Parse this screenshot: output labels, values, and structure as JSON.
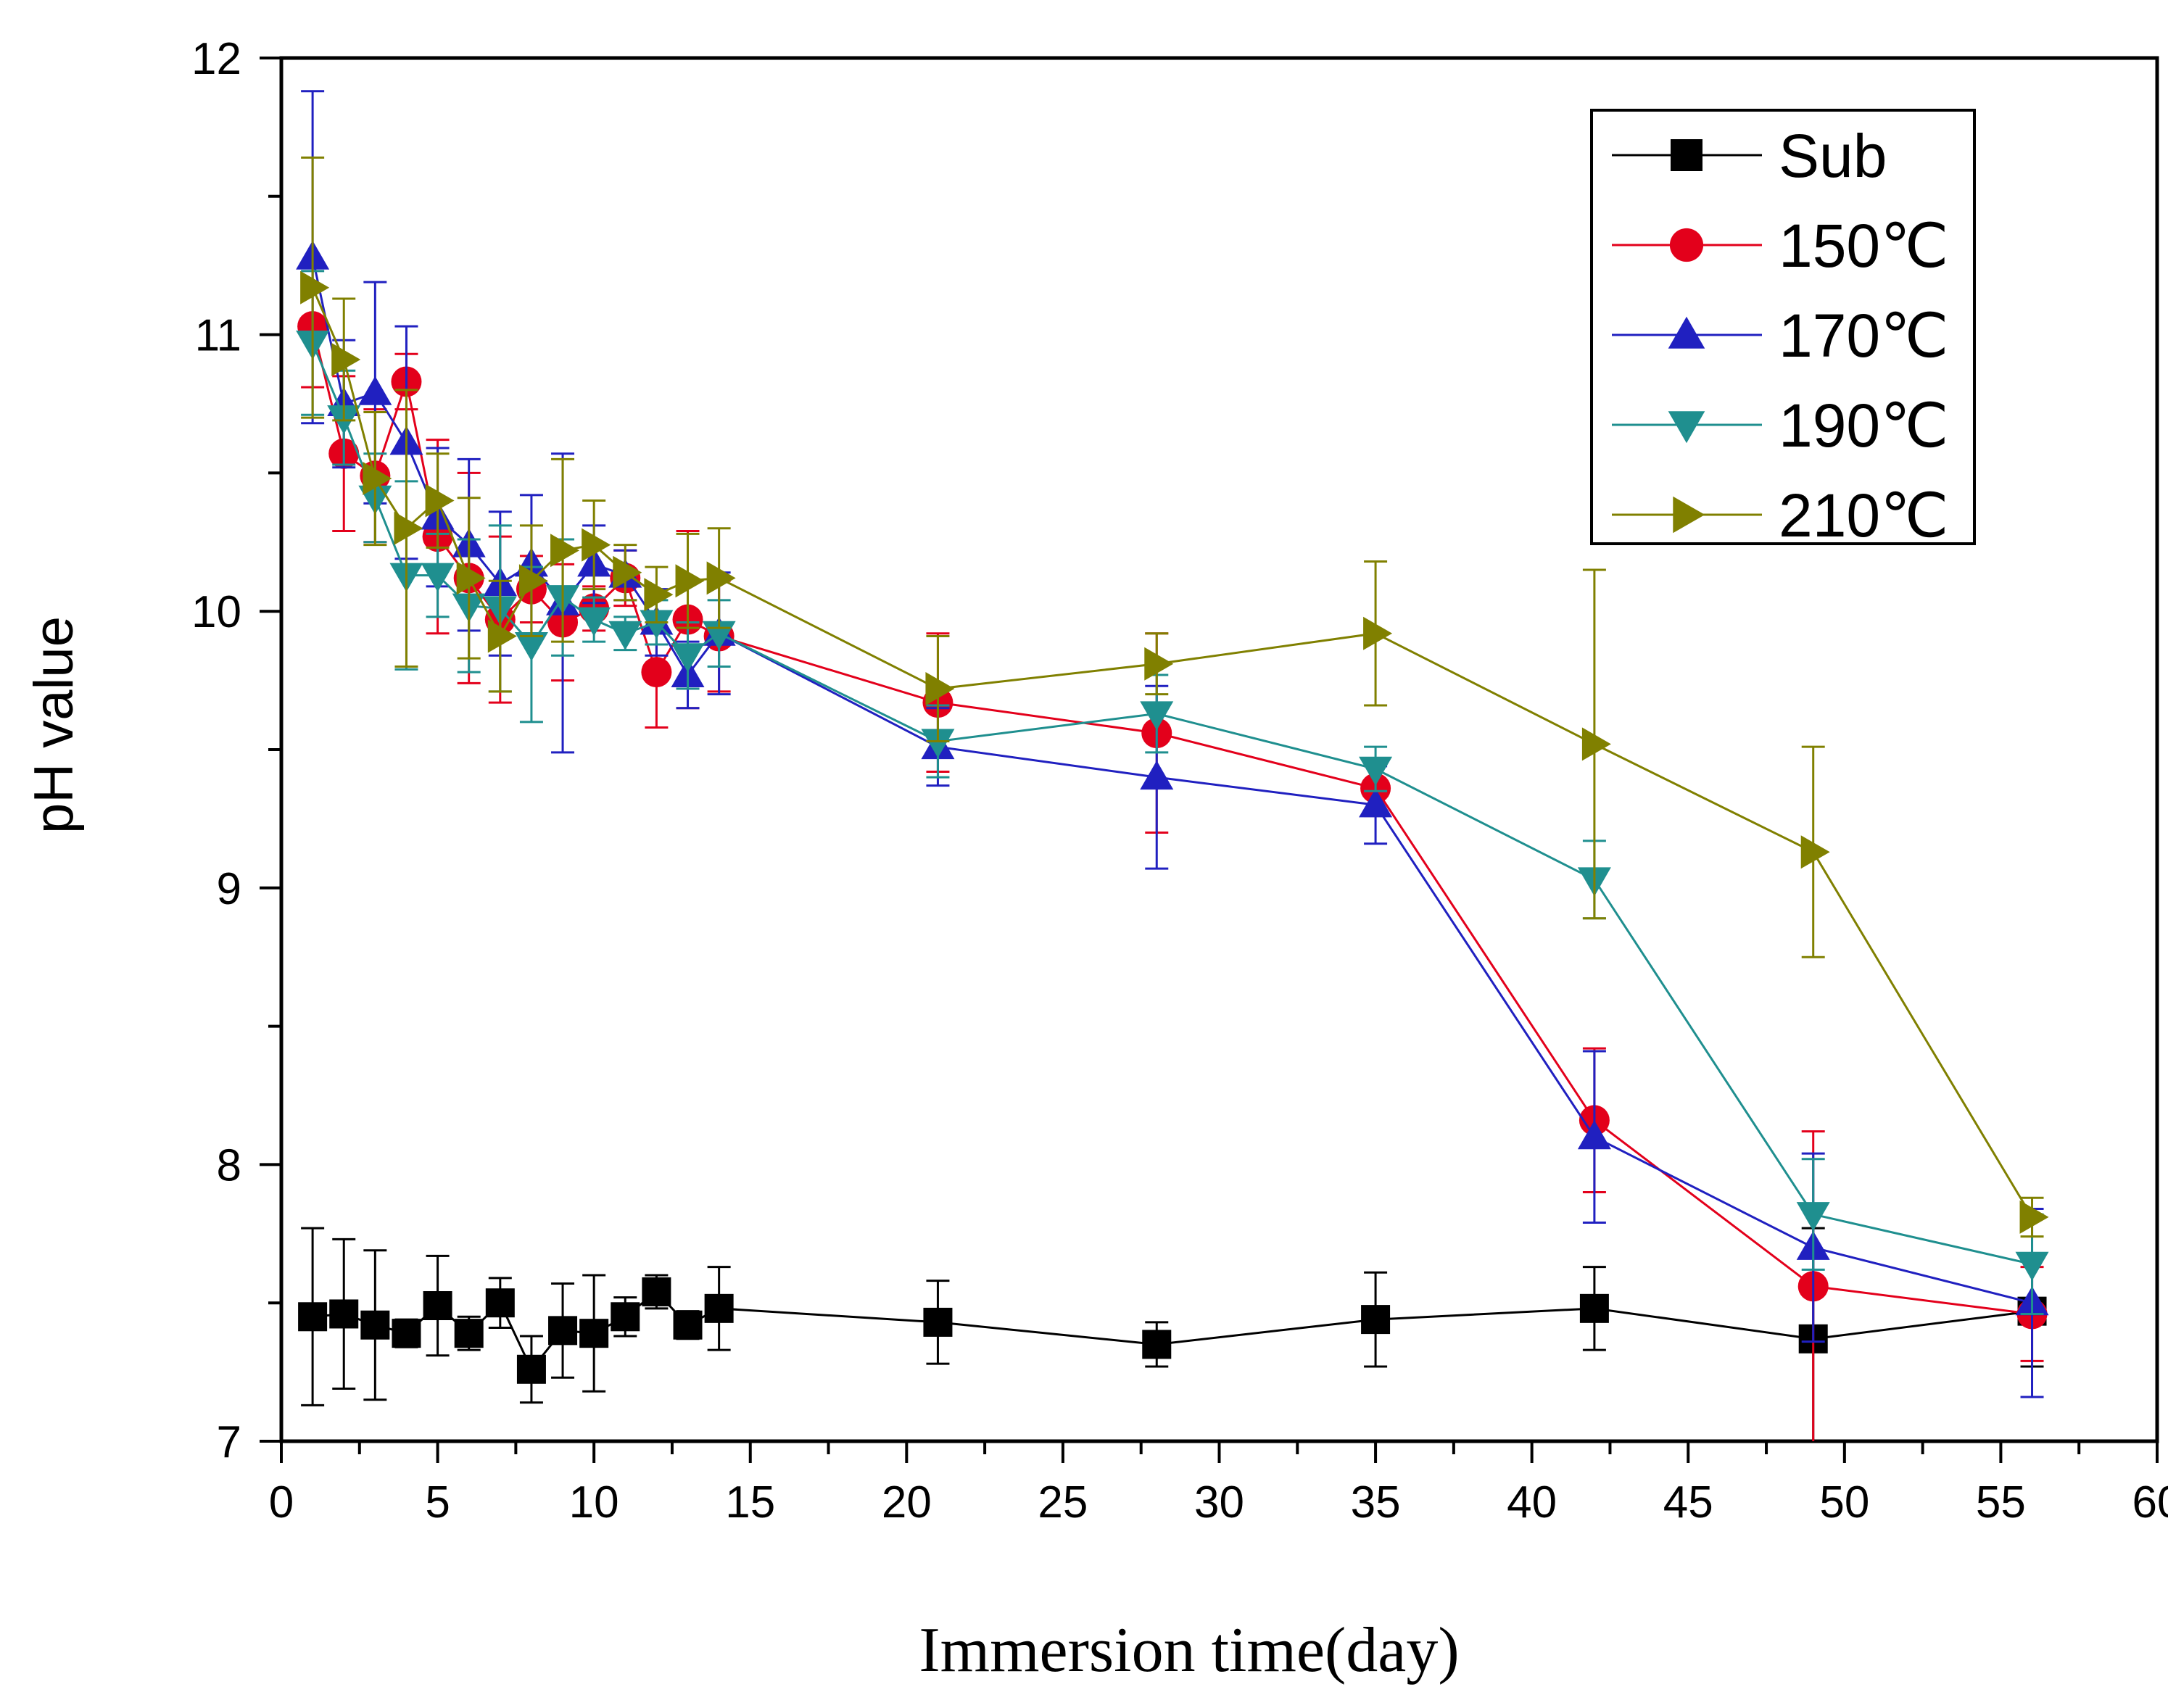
{
  "chart_data": {
    "type": "line",
    "title": "",
    "xlabel": "Immersion time(day)",
    "ylabel": "pH value",
    "xlim": [
      0,
      60
    ],
    "ylim": [
      7,
      12
    ],
    "x_ticks": [
      0,
      5,
      10,
      15,
      20,
      25,
      30,
      35,
      40,
      45,
      50,
      55,
      60
    ],
    "y_ticks": [
      7,
      8,
      9,
      10,
      11,
      12
    ],
    "x_tick_labels": [
      "0",
      "5",
      "10",
      "15",
      "20",
      "25",
      "30",
      "35",
      "40",
      "45",
      "50",
      "55",
      "60"
    ],
    "y_tick_labels": [
      "7",
      "8",
      "9",
      "10",
      "11",
      "12"
    ],
    "grid": false,
    "legend_position": "top-right",
    "x": [
      1,
      2,
      3,
      4,
      5,
      6,
      7,
      8,
      9,
      10,
      11,
      12,
      13,
      14,
      21,
      28,
      35,
      42,
      49,
      56
    ],
    "series": [
      {
        "name": "Sub",
        "color": "#000000",
        "marker": "square",
        "values": [
          7.45,
          7.46,
          7.42,
          7.39,
          7.49,
          7.39,
          7.5,
          7.26,
          7.4,
          7.39,
          7.45,
          7.54,
          7.42,
          7.48,
          7.43,
          7.35,
          7.44,
          7.48,
          7.37,
          7.47
        ],
        "errors": [
          0.32,
          0.27,
          0.27,
          0.05,
          0.18,
          0.06,
          0.09,
          0.12,
          0.17,
          0.21,
          0.07,
          0.06,
          0.05,
          0.15,
          0.15,
          0.08,
          0.17,
          0.15,
          0.4,
          0.2
        ]
      },
      {
        "name": "150℃",
        "color": "#e3001b",
        "marker": "circle",
        "values": [
          11.03,
          10.57,
          10.49,
          10.83,
          10.27,
          10.12,
          9.97,
          10.08,
          9.96,
          10.01,
          10.12,
          9.78,
          9.97,
          9.91,
          9.67,
          9.56,
          9.36,
          8.16,
          7.56,
          7.46
        ],
        "errors": [
          0.22,
          0.28,
          0.24,
          0.1,
          0.35,
          0.38,
          0.3,
          0.12,
          0.21,
          0.08,
          0.1,
          0.2,
          0.32,
          0.2,
          0.25,
          0.36,
          0.1,
          0.26,
          0.56,
          0.17
        ]
      },
      {
        "name": "170℃",
        "color": "#2020c0",
        "marker": "triangle-up",
        "values": [
          11.28,
          10.75,
          10.79,
          10.61,
          10.34,
          10.24,
          10.1,
          10.17,
          10.03,
          10.17,
          10.13,
          9.96,
          9.77,
          9.92,
          9.51,
          9.4,
          9.3,
          8.1,
          7.7,
          7.5
        ],
        "errors": [
          0.6,
          0.23,
          0.4,
          0.42,
          0.25,
          0.31,
          0.26,
          0.25,
          0.54,
          0.14,
          0.09,
          0.12,
          0.12,
          0.22,
          0.14,
          0.33,
          0.14,
          0.31,
          0.34,
          0.34
        ]
      },
      {
        "name": "190℃",
        "color": "#1f8f8f",
        "marker": "triangle-down",
        "values": [
          10.97,
          10.7,
          10.41,
          10.13,
          10.13,
          10.02,
          10.01,
          9.88,
          10.05,
          9.97,
          9.92,
          9.96,
          9.84,
          9.92,
          9.53,
          9.63,
          9.43,
          9.03,
          7.82,
          7.64
        ],
        "errors": [
          0.26,
          0.17,
          0.16,
          0.34,
          0.15,
          0.24,
          0.3,
          0.28,
          0.21,
          0.08,
          0.06,
          0.08,
          0.12,
          0.12,
          0.13,
          0.14,
          0.08,
          0.14,
          0.2,
          0.18
        ]
      },
      {
        "name": "210℃",
        "color": "#808000",
        "marker": "triangle-right",
        "values": [
          11.17,
          10.91,
          10.48,
          10.3,
          10.4,
          10.12,
          9.91,
          10.11,
          10.22,
          10.24,
          10.14,
          10.06,
          10.11,
          10.12,
          9.72,
          9.81,
          9.92,
          9.52,
          9.13,
          7.81
        ],
        "errors": [
          0.47,
          0.22,
          0.24,
          0.5,
          0.17,
          0.29,
          0.2,
          0.2,
          0.33,
          0.16,
          0.1,
          0.1,
          0.17,
          0.18,
          0.19,
          0.11,
          0.26,
          0.63,
          0.38,
          0.07
        ]
      }
    ]
  }
}
